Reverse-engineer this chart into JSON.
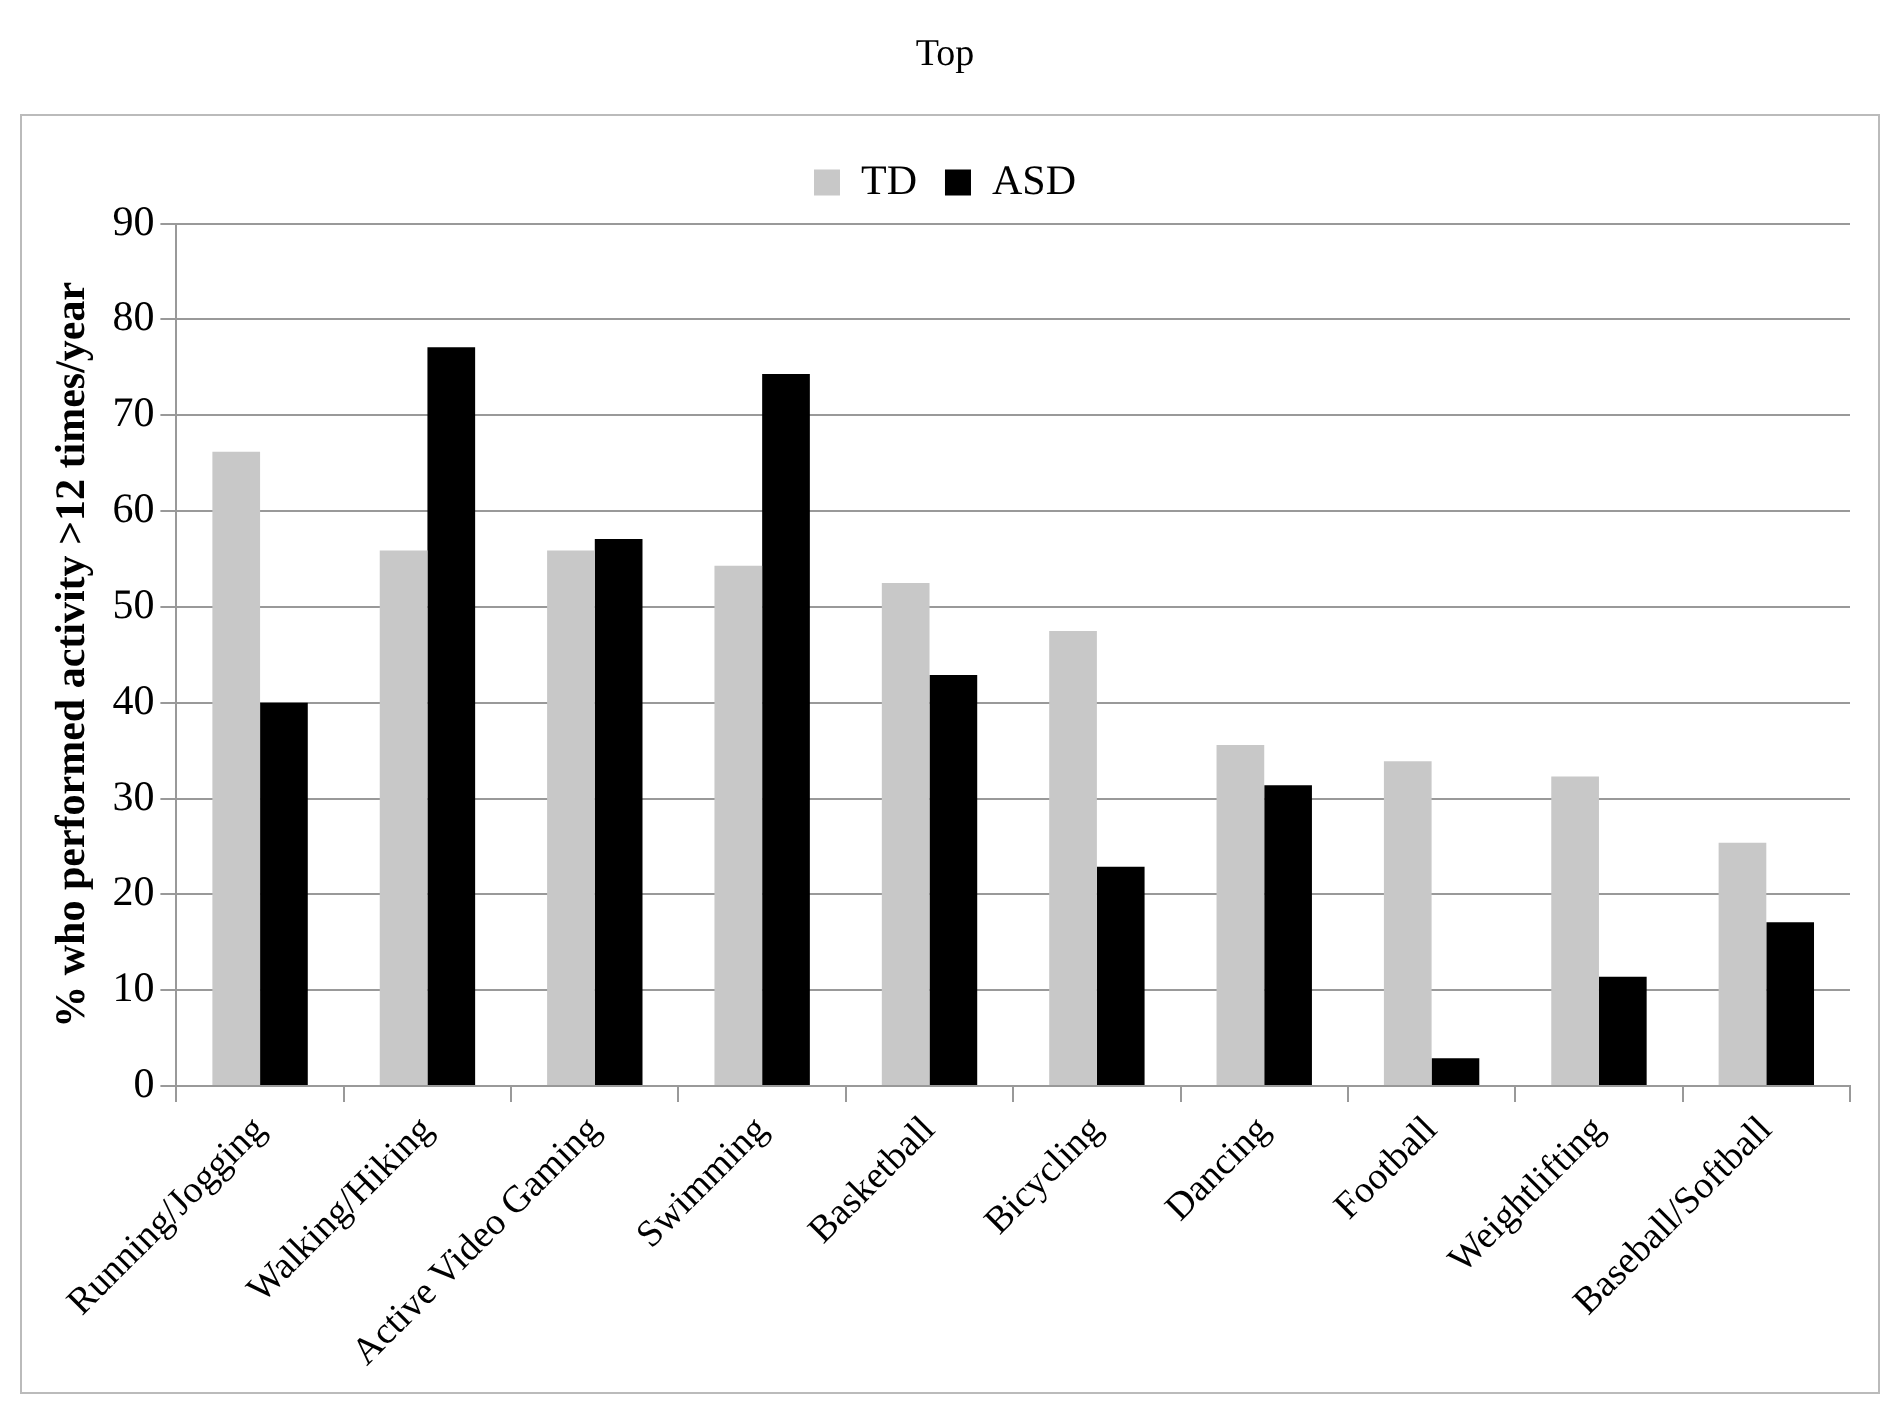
{
  "chart_data": {
    "type": "bar",
    "title": "Top",
    "ylabel": "% who performed activity >12 times/year",
    "categories": [
      "Running/Jogging",
      "Walking/Hiking",
      "Active Video Gaming",
      "Swimming",
      "Basketball",
      "Bicycling",
      "Dancing",
      "Football",
      "Weightlifting",
      "Baseball/Softball"
    ],
    "series": [
      {
        "name": "TD",
        "color": "#c8c8c8",
        "values": [
          66.2,
          55.9,
          55.9,
          54.3,
          52.5,
          47.5,
          35.6,
          33.9,
          32.3,
          25.4
        ]
      },
      {
        "name": "ASD",
        "color": "#000000",
        "values": [
          40,
          77.1,
          57.1,
          74.3,
          42.9,
          22.9,
          31.4,
          2.9,
          11.4,
          17.1
        ]
      }
    ],
    "ylim": [
      0,
      90
    ],
    "yticks": [
      0,
      10,
      20,
      30,
      40,
      50,
      60,
      70,
      80,
      90
    ],
    "grid": "y",
    "legend": "top"
  }
}
